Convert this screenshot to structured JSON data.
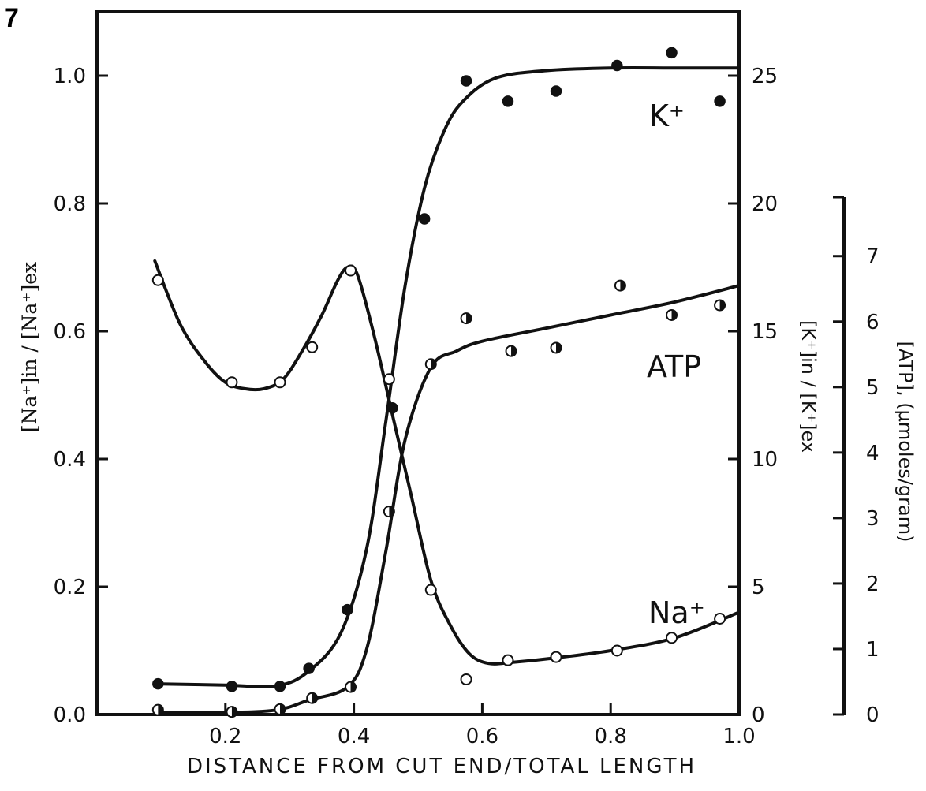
{
  "figure": {
    "number": "7"
  },
  "chart_data": {
    "type": "scatter",
    "xlabel": "DISTANCE FROM CUT END/TOTAL LENGTH",
    "ylabel_left": "[Na⁺]in / [Na⁺]ex",
    "ylabel_right_k": "[K⁺]in / [K⁺]ex",
    "ylabel_right_atp": "[ATP], (μmoles/gram)",
    "x_ticks": [
      "0.2",
      "0.4",
      "0.6",
      "0.8",
      "1.0"
    ],
    "y_left_ticks": [
      "0.0",
      "0.2",
      "0.4",
      "0.6",
      "0.8",
      "1.0"
    ],
    "y_k_ticks": [
      "0",
      "5",
      "10",
      "15",
      "20",
      "25"
    ],
    "y_atp_ticks": [
      "0",
      "1",
      "2",
      "3",
      "4",
      "5",
      "6",
      "7"
    ],
    "xlim": [
      0.0,
      1.0
    ],
    "ylim_left": [
      0.0,
      1.1
    ],
    "ylim_k": [
      0,
      27.5
    ],
    "ylim_atp": [
      0,
      8
    ],
    "series": [
      {
        "name": "K⁺",
        "axis": "k",
        "marker": "filled",
        "x": [
          0.095,
          0.21,
          0.285,
          0.33,
          0.39,
          0.46,
          0.51,
          0.575,
          0.64,
          0.715,
          0.81,
          0.895,
          0.97
        ],
        "y": [
          1.2,
          1.1,
          1.1,
          1.8,
          4.1,
          12.0,
          19.4,
          24.8,
          24.0,
          24.4,
          25.4,
          25.9,
          24.0
        ],
        "curve_x": [
          0.09,
          0.2,
          0.28,
          0.33,
          0.38,
          0.42,
          0.45,
          0.48,
          0.51,
          0.54,
          0.57,
          0.62,
          0.7,
          0.8,
          0.9,
          1.0
        ],
        "curve_y": [
          1.2,
          1.15,
          1.12,
          1.7,
          3.2,
          6.5,
          11.5,
          16.8,
          20.6,
          22.8,
          24.0,
          24.9,
          25.2,
          25.3,
          25.3,
          25.3
        ]
      },
      {
        "name": "ATP",
        "axis": "atp",
        "marker": "half",
        "x": [
          0.095,
          0.21,
          0.285,
          0.335,
          0.395,
          0.455,
          0.52,
          0.575,
          0.645,
          0.715,
          0.815,
          0.895,
          0.97
        ],
        "y": [
          0.07,
          0.04,
          0.08,
          0.25,
          0.42,
          3.1,
          5.35,
          6.05,
          5.55,
          5.6,
          6.55,
          6.1,
          6.25
        ],
        "curve_x": [
          0.09,
          0.2,
          0.28,
          0.33,
          0.39,
          0.42,
          0.45,
          0.48,
          0.52,
          0.56,
          0.6,
          0.7,
          0.8,
          0.9,
          1.0
        ],
        "curve_y": [
          0.03,
          0.03,
          0.07,
          0.22,
          0.42,
          1.0,
          2.5,
          4.2,
          5.3,
          5.55,
          5.7,
          5.9,
          6.1,
          6.3,
          6.55
        ]
      },
      {
        "name": "Na⁺",
        "axis": "left",
        "marker": "open",
        "x": [
          0.095,
          0.21,
          0.285,
          0.335,
          0.395,
          0.455,
          0.52,
          0.575,
          0.64,
          0.715,
          0.81,
          0.895,
          0.97
        ],
        "y": [
          0.68,
          0.52,
          0.52,
          0.575,
          0.695,
          0.525,
          0.195,
          0.055,
          0.085,
          0.09,
          0.1,
          0.12,
          0.15
        ],
        "curve_x": [
          0.09,
          0.13,
          0.17,
          0.2,
          0.23,
          0.26,
          0.29,
          0.32,
          0.35,
          0.375,
          0.39,
          0.405,
          0.43,
          0.46,
          0.49,
          0.52,
          0.55,
          0.58,
          0.61,
          0.65,
          0.7,
          0.8,
          0.9,
          1.0
        ],
        "curve_y": [
          0.71,
          0.61,
          0.55,
          0.52,
          0.51,
          0.51,
          0.525,
          0.57,
          0.625,
          0.68,
          0.7,
          0.69,
          0.6,
          0.47,
          0.34,
          0.21,
          0.14,
          0.095,
          0.08,
          0.082,
          0.087,
          0.1,
          0.12,
          0.16
        ]
      }
    ],
    "series_labels": {
      "k": "K⁺",
      "atp": "ATP",
      "na": "Na⁺"
    }
  }
}
